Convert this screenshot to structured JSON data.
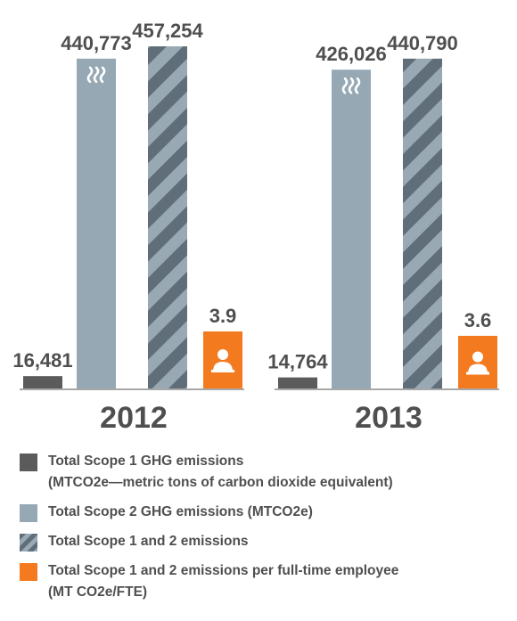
{
  "chart_data": {
    "type": "bar",
    "categories": [
      "2012",
      "2013"
    ],
    "series": [
      {
        "name": "Total Scope 1 GHG emissions (MTCO2e—metric tons of carbon dioxide equivalent)",
        "values": [
          16481,
          14764
        ],
        "labels": [
          "16,481",
          "14,764"
        ],
        "color": "#5b5b5b",
        "icon": "heat-waves-icon"
      },
      {
        "name": "Total Scope 2 GHG emissions (MTCO2e)",
        "values": [
          440773,
          426026
        ],
        "labels": [
          "440,773",
          "426,026"
        ],
        "color": "#95a8b3",
        "icon": "heat-waves-icon"
      },
      {
        "name": "Total Scope 1 and 2 emissions",
        "values": [
          457254,
          440790
        ],
        "labels": [
          "457,254",
          "440,790"
        ],
        "color": "#7a8a94",
        "pattern": "diagonal-stripes"
      },
      {
        "name": "Total Scope 1 and 2 emissions per full-time employee (MT CO2e/FTE)",
        "values": [
          3.9,
          3.6
        ],
        "labels": [
          "3.9",
          "3.6"
        ],
        "color": "#f47a1f",
        "icon": "person-icon"
      }
    ]
  },
  "legend": [
    {
      "lines": [
        "Total Scope 1 GHG emissions",
        "(MTCO2e—metric tons of carbon dioxide equivalent)"
      ],
      "color": "#5b5b5b",
      "pattern": "solid"
    },
    {
      "lines": [
        "Total Scope 2 GHG emissions (MTCO2e)"
      ],
      "color": "#95a8b3",
      "pattern": "solid"
    },
    {
      "lines": [
        "Total Scope 1 and 2 emissions"
      ],
      "color": "#7a8a94",
      "pattern": "diagonal-stripes"
    },
    {
      "lines": [
        "Total Scope 1 and 2 emissions per full-time employee",
        "(MT CO2e/FTE)"
      ],
      "color": "#f47a1f",
      "pattern": "solid"
    }
  ],
  "colors": {
    "text": "#4f4f4f",
    "baseline": "#8a8a8a",
    "stripe_dark": "#5f6e78",
    "stripe_light": "#98a9b4"
  }
}
